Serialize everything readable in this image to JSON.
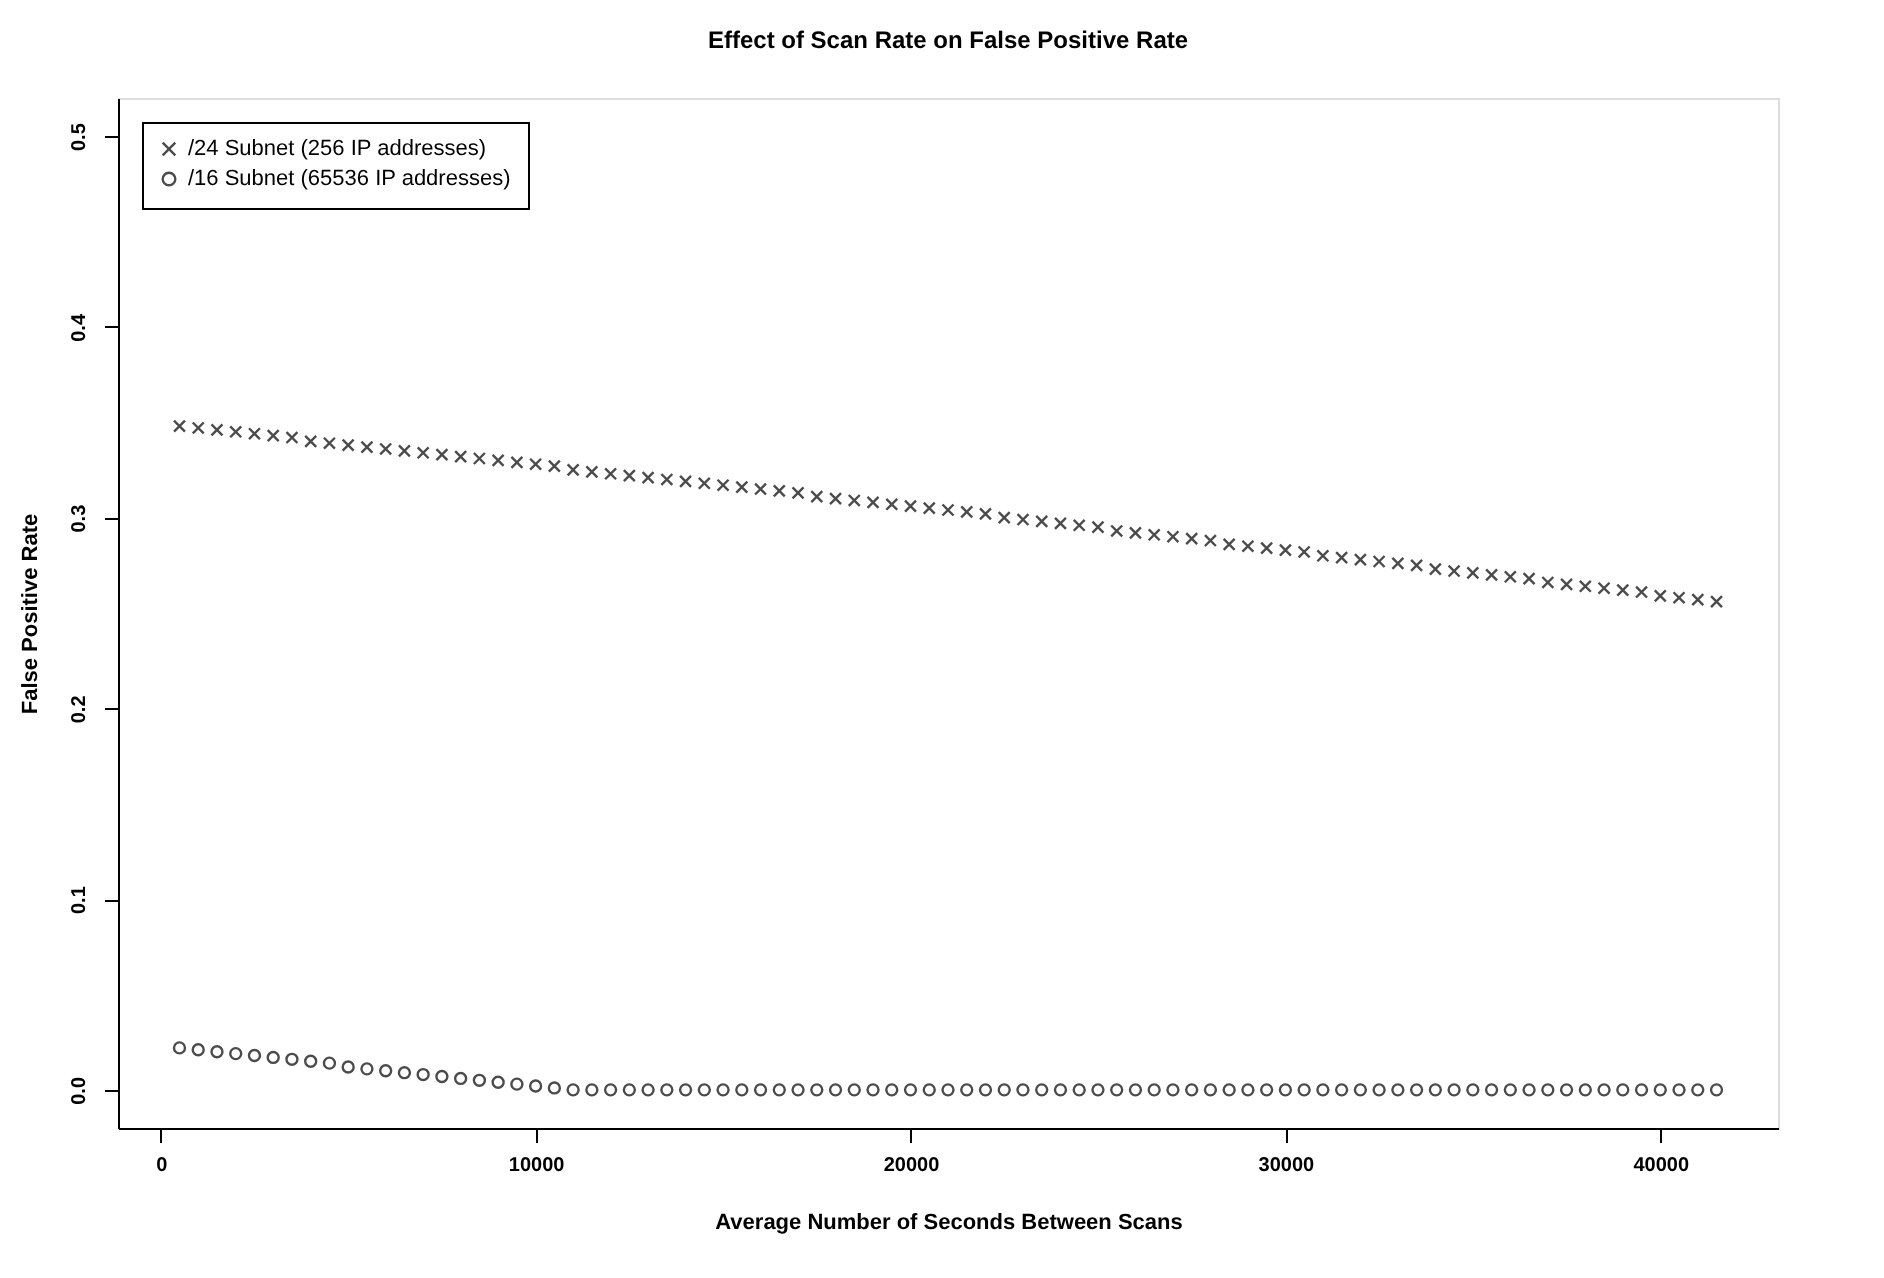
{
  "chart_data": {
    "type": "scatter",
    "title": "Effect of Scan Rate on False Positive Rate",
    "xlabel": "Average Number of Seconds Between Scans",
    "ylabel": "False Positive Rate",
    "x": [
      500,
      1000,
      1500,
      2000,
      2500,
      3000,
      3500,
      4000,
      4500,
      5000,
      5500,
      6000,
      6500,
      7000,
      7500,
      8000,
      8500,
      9000,
      9500,
      10000,
      10500,
      11000,
      11500,
      12000,
      12500,
      13000,
      13500,
      14000,
      14500,
      15000,
      15500,
      16000,
      16500,
      17000,
      17500,
      18000,
      18500,
      19000,
      19500,
      20000,
      20500,
      21000,
      21500,
      22000,
      22500,
      23000,
      23500,
      24000,
      24500,
      25000,
      25500,
      26000,
      26500,
      27000,
      27500,
      28000,
      28500,
      29000,
      29500,
      30000,
      30500,
      31000,
      31500,
      32000,
      32500,
      33000,
      33500,
      34000,
      34500,
      35000,
      35500,
      36000,
      36500,
      37000,
      37500,
      38000,
      38500,
      39000,
      39500,
      40000,
      40500,
      41000,
      41500
    ],
    "series": [
      {
        "name": "/24 Subnet (256 IP addresses)",
        "color": "#000000",
        "marker": "cross",
        "values": [
          0.348,
          0.347,
          0.346,
          0.345,
          0.344,
          0.343,
          0.342,
          0.34,
          0.339,
          0.338,
          0.337,
          0.336,
          0.335,
          0.334,
          0.333,
          0.332,
          0.331,
          0.33,
          0.329,
          0.328,
          0.327,
          0.325,
          0.324,
          0.323,
          0.322,
          0.321,
          0.32,
          0.319,
          0.318,
          0.317,
          0.316,
          0.315,
          0.314,
          0.313,
          0.311,
          0.31,
          0.309,
          0.308,
          0.307,
          0.306,
          0.305,
          0.304,
          0.303,
          0.302,
          0.3,
          0.299,
          0.298,
          0.297,
          0.296,
          0.295,
          0.293,
          0.292,
          0.291,
          0.29,
          0.289,
          0.288,
          0.286,
          0.285,
          0.284,
          0.283,
          0.282,
          0.28,
          0.279,
          0.278,
          0.277,
          0.276,
          0.275,
          0.273,
          0.272,
          0.271,
          0.27,
          0.269,
          0.268,
          0.266,
          0.265,
          0.264,
          0.263,
          0.262,
          0.261,
          0.259,
          0.258,
          0.257,
          0.256
        ]
      },
      {
        "name": "/16 Subnet (65536 IP addresses)",
        "color": "#000000",
        "marker": "circle",
        "values": [
          0.022,
          0.021,
          0.02,
          0.019,
          0.018,
          0.017,
          0.016,
          0.015,
          0.014,
          0.012,
          0.011,
          0.01,
          0.009,
          0.008,
          0.007,
          0.006,
          0.005,
          0.004,
          0.003,
          0.002,
          0.001,
          0,
          0,
          0,
          0,
          0,
          0,
          0,
          0,
          0,
          0,
          0,
          0,
          0,
          0,
          0,
          0,
          0,
          0,
          0,
          0,
          0,
          0,
          0,
          0,
          0,
          0,
          0,
          0,
          0,
          0,
          0,
          0,
          0,
          0,
          0,
          0,
          0,
          0,
          0,
          0,
          0,
          0,
          0,
          0,
          0,
          0,
          0,
          0,
          0,
          0,
          0,
          0,
          0,
          0,
          0,
          0,
          0,
          0,
          0,
          0,
          0,
          0
        ]
      }
    ],
    "xlim": [
      -1140,
      43140
    ],
    "xticks": [
      0,
      10000,
      20000,
      30000,
      40000
    ],
    "ylim": [
      -0.02,
      0.52
    ],
    "yticks": [
      {
        "value": 0,
        "label": "0.0"
      },
      0.1,
      0.2,
      0.3,
      0.4,
      0.5
    ],
    "grid": false,
    "legend": "top left"
  }
}
